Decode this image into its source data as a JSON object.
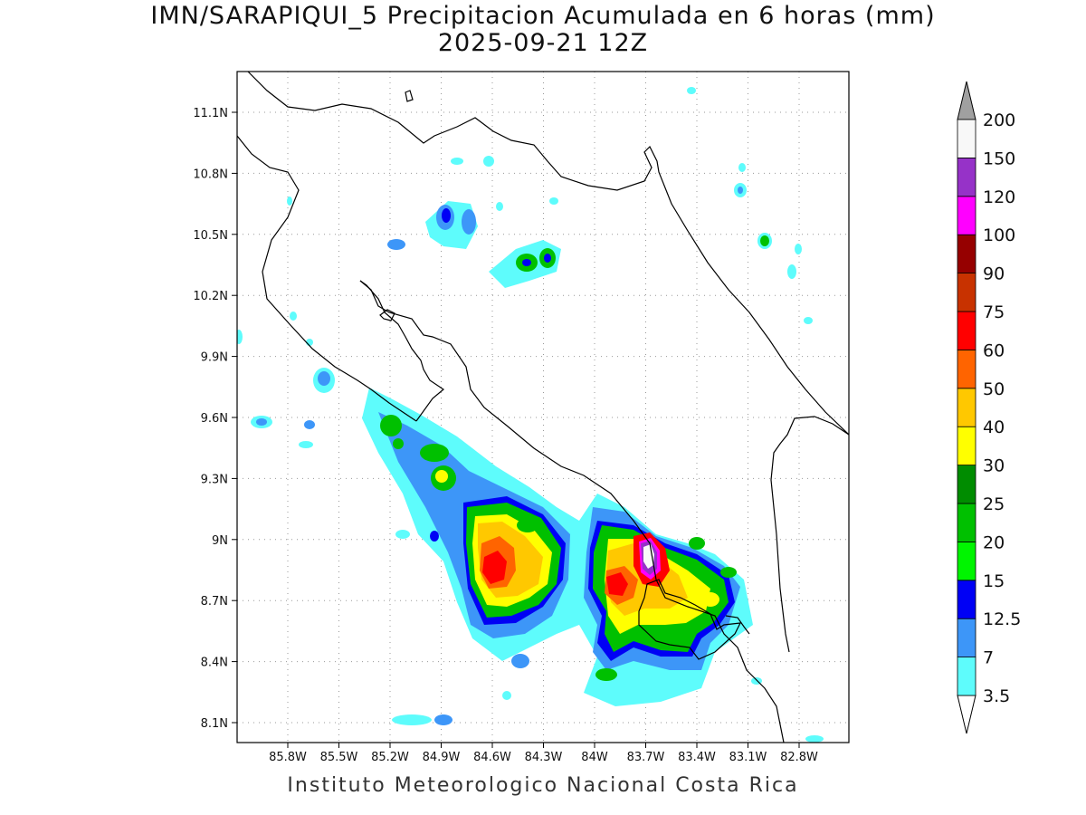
{
  "title_line1": "IMN/SARAPIQUI_5 Precipitacion Acumulada en 6 horas (mm)",
  "title_line2": "2025-09-21 12Z",
  "footer": "Instituto Meteorologico Nacional Costa Rica",
  "axes": {
    "lon_ticks": [
      "85.8W",
      "85.5W",
      "85.2W",
      "84.9W",
      "84.6W",
      "84.3W",
      "84W",
      "83.7W",
      "83.4W",
      "83.1W",
      "82.8W"
    ],
    "lat_ticks": [
      "11.1N",
      "10.8N",
      "10.5N",
      "10.2N",
      "9.9N",
      "9.6N",
      "9.3N",
      "9N",
      "8.7N",
      "8.4N",
      "8.1N"
    ],
    "grid": "dotted"
  },
  "colorbar": {
    "labels": [
      "3.5",
      "7",
      "12.5",
      "15",
      "20",
      "25",
      "30",
      "40",
      "50",
      "60",
      "75",
      "90",
      "100",
      "120",
      "150",
      "200"
    ],
    "colors": [
      "#5efcfc",
      "#3d96f8",
      "#0000f5",
      "#00f500",
      "#00c000",
      "#008c00",
      "#ffff00",
      "#ffc800",
      "#ff6400",
      "#ff0000",
      "#c83200",
      "#960000",
      "#ff00ff",
      "#9632c8",
      "#f8f8f8"
    ],
    "over_color": "#a0a0a0",
    "under_color": "#ffffff"
  },
  "palette": {
    "cyan": "#5efcfc",
    "lightblue": "#3d96f8",
    "blue": "#0000f5",
    "green": "#00f500",
    "medgreen": "#00c000",
    "darkgreen": "#008c00",
    "yellow": "#ffff00",
    "gold": "#ffc800",
    "orange": "#ff6400",
    "red": "#ff0000",
    "magenta": "#ff00ff",
    "purple": "#9632c8",
    "white": "#f8f8f8"
  }
}
